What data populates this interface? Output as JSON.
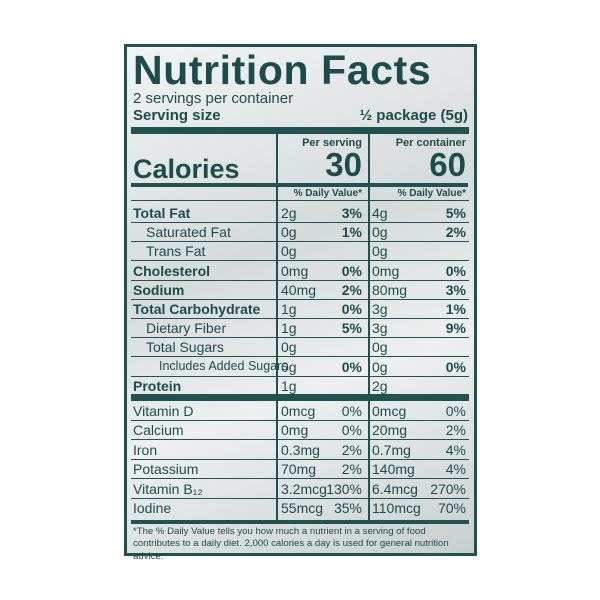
{
  "title": "Nutrition Facts",
  "servings": "2 servings per container",
  "serving_size": {
    "label": "Serving size",
    "value": "½ package (5g)"
  },
  "calories_label": "Calories",
  "columns": [
    {
      "header": "Per serving",
      "calories": "30",
      "dv_header": "% Daily Value*"
    },
    {
      "header": "Per container",
      "calories": "60",
      "dv_header": "% Daily Value*"
    }
  ],
  "nutrients": [
    {
      "name": "Total Fat",
      "serving": {
        "amount": "2g",
        "dv": "3%"
      },
      "container": {
        "amount": "4g",
        "dv": "5%"
      }
    },
    {
      "name": "Saturated Fat",
      "serving": {
        "amount": "0g",
        "dv": "1%"
      },
      "container": {
        "amount": "0g",
        "dv": "2%"
      }
    },
    {
      "name": "Trans Fat",
      "serving": {
        "amount": "0g"
      },
      "container": {
        "amount": "0g"
      }
    },
    {
      "name": "Cholesterol",
      "serving": {
        "amount": "0mg",
        "dv": "0%"
      },
      "container": {
        "amount": "0mg",
        "dv": "0%"
      }
    },
    {
      "name": "Sodium",
      "serving": {
        "amount": "40mg",
        "dv": "2%"
      },
      "container": {
        "amount": "80mg",
        "dv": "3%"
      }
    },
    {
      "name": "Total Carbohydrate",
      "serving": {
        "amount": "1g",
        "dv": "0%"
      },
      "container": {
        "amount": "3g",
        "dv": "1%"
      }
    },
    {
      "name": "Dietary Fiber",
      "serving": {
        "amount": "1g",
        "dv": "5%"
      },
      "container": {
        "amount": "3g",
        "dv": "9%"
      }
    },
    {
      "name": "Total Sugars",
      "serving": {
        "amount": "0g"
      },
      "container": {
        "amount": "0g"
      }
    },
    {
      "name": "Includes Added Sugars",
      "serving": {
        "amount": "0g",
        "dv": "0%"
      },
      "container": {
        "amount": "0g",
        "dv": "0%"
      }
    },
    {
      "name": "Protein",
      "serving": {
        "amount": "1g"
      },
      "container": {
        "amount": "2g"
      }
    }
  ],
  "vitamins": [
    {
      "name": "Vitamin D",
      "serving": {
        "amount": "0mcg",
        "dv": "0%"
      },
      "container": {
        "amount": "0mcg",
        "dv": "0%"
      }
    },
    {
      "name": "Calcium",
      "serving": {
        "amount": "0mg",
        "dv": "0%"
      },
      "container": {
        "amount": "20mg",
        "dv": "2%"
      }
    },
    {
      "name": "Iron",
      "serving": {
        "amount": "0.3mg",
        "dv": "2%"
      },
      "container": {
        "amount": "0.7mg",
        "dv": "4%"
      }
    },
    {
      "name": "Potassium",
      "serving": {
        "amount": "70mg",
        "dv": "2%"
      },
      "container": {
        "amount": "140mg",
        "dv": "4%"
      }
    },
    {
      "name": "Vitamin B₁₂",
      "serving": {
        "amount": "3.2mcg",
        "dv": "130%"
      },
      "container": {
        "amount": "6.4mcg",
        "dv": "270%"
      }
    },
    {
      "name": "Iodine",
      "serving": {
        "amount": "55mcg",
        "dv": "35%"
      },
      "container": {
        "amount": "110mcg",
        "dv": "70%"
      }
    }
  ],
  "footnote": "*The % Daily Value tells you how much a nutrient in a serving of food contributes to a daily diet. 2,000 calories a day is used for general nutrition advice."
}
